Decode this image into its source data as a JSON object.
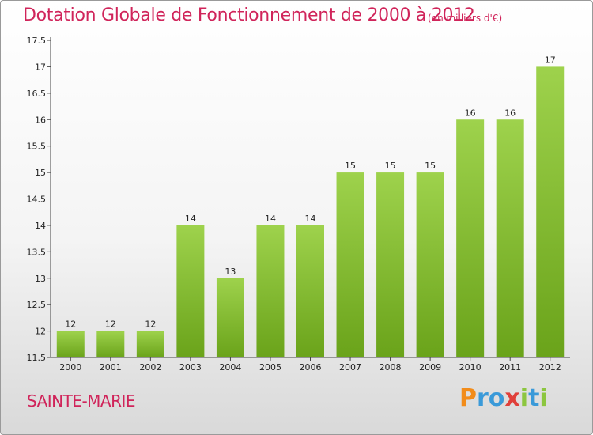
{
  "title": "Dotation Globale de Fonctionnement de 2000 à 2012",
  "unit": "(en milliers d'€)",
  "city": "SAINTE-MARIE",
  "logo": {
    "letters": [
      "P",
      "r",
      "o",
      "x",
      "i",
      "t",
      "i"
    ],
    "colors": [
      "#f28c1a",
      "#3a9ad9",
      "#3a9ad9",
      "#e0403a",
      "#8cc63f",
      "#3a9ad9",
      "#8cc63f"
    ]
  },
  "colors": {
    "title": "#d0245a",
    "bar_light": "#9ed24c",
    "bar_dark": "#6aa31a"
  },
  "chart_data": {
    "type": "bar",
    "categories": [
      "2000",
      "2001",
      "2002",
      "2003",
      "2004",
      "2005",
      "2006",
      "2007",
      "2008",
      "2009",
      "2010",
      "2011",
      "2012"
    ],
    "values": [
      12,
      12,
      12,
      14,
      13,
      14,
      14,
      15,
      15,
      15,
      16,
      16,
      17
    ],
    "labels": [
      "12",
      "12",
      "12",
      "14",
      "13",
      "14",
      "14",
      "15",
      "15",
      "15",
      "16",
      "16",
      "17"
    ],
    "title": "Dotation Globale de Fonctionnement de 2000 à 2012",
    "xlabel": "",
    "ylabel": "",
    "ylim": [
      11.5,
      17.5
    ],
    "yticks": [
      11.5,
      12,
      12.5,
      13,
      13.5,
      14,
      14.5,
      15,
      15.5,
      16,
      16.5,
      17,
      17.5
    ],
    "ytick_labels": [
      "11.5",
      "12",
      "12.5",
      "13",
      "13.5",
      "14",
      "14.5",
      "15",
      "15.5",
      "16",
      "16.5",
      "17",
      "17.5"
    ],
    "grid": false,
    "legend": "none"
  }
}
